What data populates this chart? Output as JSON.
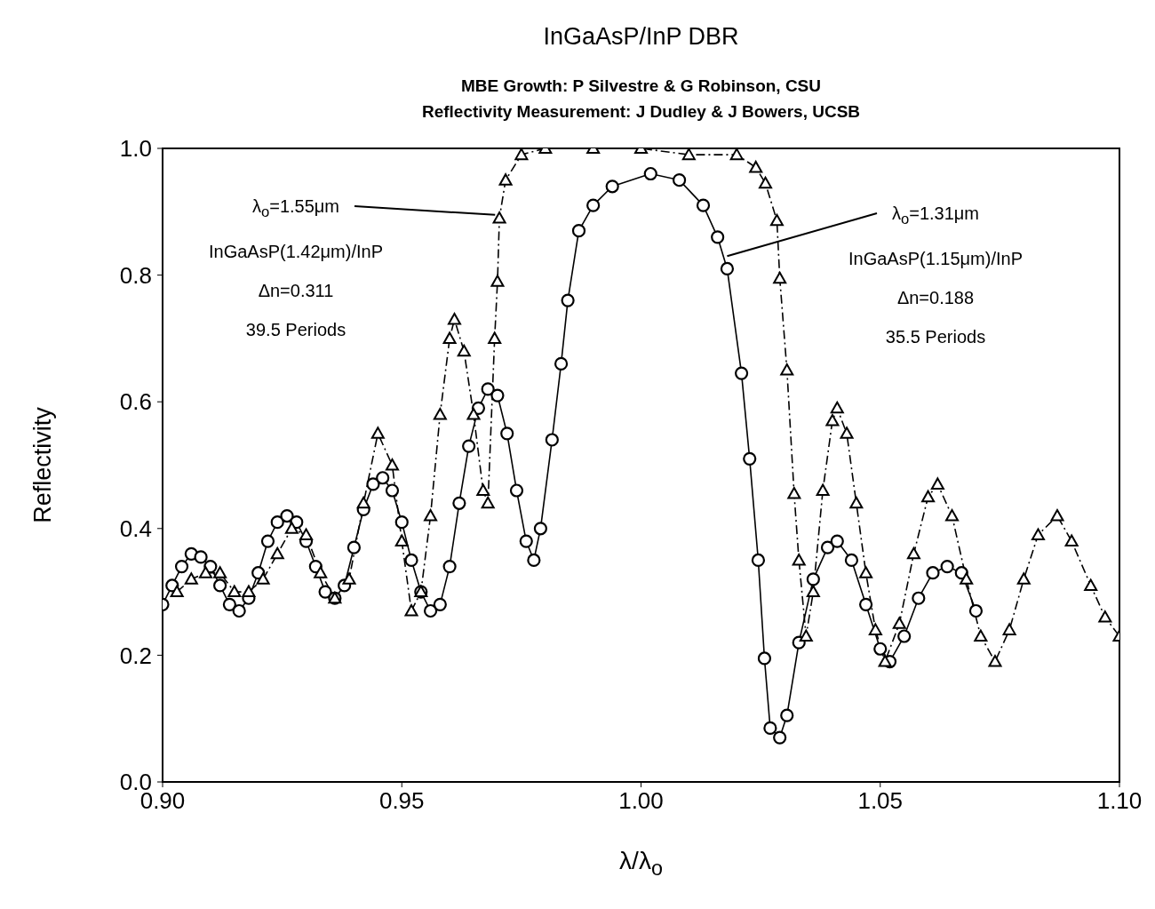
{
  "chart_data": {
    "type": "line",
    "title": "InGaAsP/InP  DBR",
    "subtitle": "MBE Growth: P Silvestre & G Robinson, CSU\nReflectivity Measurement: J Dudley & J Bowers, UCSB",
    "xlabel": "λ/λ$_{o}$",
    "ylabel": "Reflectivity",
    "xlim": [
      0.9,
      1.1
    ],
    "xticks": [
      {
        "value": 0.9,
        "label": "0.90"
      },
      {
        "value": 0.95,
        "label": "0.95"
      },
      {
        "value": 1.0,
        "label": "1.00"
      },
      {
        "value": 1.05,
        "label": "1.05"
      },
      {
        "value": 1.1,
        "label": "1.10"
      }
    ],
    "ylim": [
      0,
      1
    ],
    "yticks": [
      {
        "value": 0,
        "label": "0.0"
      },
      {
        "value": 0.2,
        "label": "0.2"
      },
      {
        "value": 0.4,
        "label": "0.4"
      },
      {
        "value": 0.6,
        "label": "0.6"
      },
      {
        "value": 0.8,
        "label": "0.8"
      },
      {
        "value": 1,
        "label": "1.0"
      }
    ],
    "grid": false,
    "legend": false,
    "series": [
      {
        "color": "#000000",
        "marker": "circle",
        "line_style": "solid",
        "x": [
          0.9,
          0.902,
          0.904,
          0.906,
          0.908,
          0.91,
          0.912,
          0.914,
          0.916,
          0.918,
          0.92,
          0.922,
          0.924,
          0.926,
          0.928,
          0.93,
          0.932,
          0.934,
          0.936,
          0.938,
          0.94,
          0.942,
          0.944,
          0.946,
          0.948,
          0.95,
          0.952,
          0.954,
          0.956,
          0.958,
          0.96,
          0.962,
          0.964,
          0.966,
          0.968,
          0.97,
          0.972,
          0.974,
          0.976,
          0.9776,
          0.979,
          0.9814,
          0.9833,
          0.9847,
          0.987,
          0.99,
          0.994,
          1.002,
          1.008,
          1.013,
          1.016,
          1.018,
          1.021,
          1.0227,
          1.0245,
          1.0258,
          1.027,
          1.029,
          1.0305,
          1.033,
          1.036,
          1.039,
          1.041,
          1.044,
          1.047,
          1.05,
          1.052,
          1.055,
          1.058,
          1.061,
          1.064,
          1.067,
          1.07
        ],
        "values": [
          0.28,
          0.31,
          0.34,
          0.36,
          0.355,
          0.34,
          0.31,
          0.28,
          0.27,
          0.29,
          0.33,
          0.38,
          0.41,
          0.42,
          0.41,
          0.38,
          0.34,
          0.3,
          0.29,
          0.31,
          0.37,
          0.43,
          0.47,
          0.48,
          0.46,
          0.41,
          0.35,
          0.3,
          0.27,
          0.28,
          0.34,
          0.44,
          0.53,
          0.59,
          0.62,
          0.61,
          0.55,
          0.46,
          0.38,
          0.35,
          0.4,
          0.54,
          0.66,
          0.76,
          0.87,
          0.91,
          0.94,
          0.96,
          0.95,
          0.91,
          0.86,
          0.81,
          0.645,
          0.51,
          0.35,
          0.195,
          0.085,
          0.07,
          0.105,
          0.22,
          0.32,
          0.37,
          0.38,
          0.35,
          0.28,
          0.21,
          0.19,
          0.23,
          0.29,
          0.33,
          0.34,
          0.33,
          0.27
        ]
      },
      {
        "color": "#000000",
        "marker": "triangle",
        "line_style": "dashed",
        "x": [
          0.903,
          0.906,
          0.909,
          0.912,
          0.915,
          0.918,
          0.921,
          0.924,
          0.927,
          0.93,
          0.933,
          0.936,
          0.939,
          0.942,
          0.945,
          0.948,
          0.95,
          0.952,
          0.954,
          0.956,
          0.958,
          0.96,
          0.961,
          0.963,
          0.965,
          0.967,
          0.968,
          0.9694,
          0.97,
          0.9704,
          0.9717,
          0.975,
          0.98,
          0.99,
          1.0,
          1.01,
          1.02,
          1.024,
          1.026,
          1.0284,
          1.029,
          1.0305,
          1.032,
          1.033,
          1.0345,
          1.036,
          1.038,
          1.04,
          1.041,
          1.043,
          1.045,
          1.047,
          1.049,
          1.051,
          1.054,
          1.057,
          1.06,
          1.062,
          1.065,
          1.068,
          1.071,
          1.074,
          1.077,
          1.08,
          1.083,
          1.087,
          1.09,
          1.094,
          1.097,
          1.1
        ],
        "values": [
          0.3,
          0.32,
          0.33,
          0.33,
          0.3,
          0.3,
          0.32,
          0.36,
          0.4,
          0.39,
          0.33,
          0.29,
          0.32,
          0.44,
          0.55,
          0.5,
          0.38,
          0.27,
          0.3,
          0.42,
          0.58,
          0.7,
          0.73,
          0.68,
          0.58,
          0.46,
          0.44,
          0.7,
          0.79,
          0.89,
          0.95,
          0.99,
          1.0,
          1.0,
          1.0,
          0.99,
          0.99,
          0.97,
          0.945,
          0.886,
          0.795,
          0.65,
          0.455,
          0.35,
          0.23,
          0.3,
          0.46,
          0.57,
          0.59,
          0.55,
          0.44,
          0.33,
          0.24,
          0.19,
          0.25,
          0.36,
          0.45,
          0.47,
          0.42,
          0.32,
          0.23,
          0.19,
          0.24,
          0.32,
          0.39,
          0.42,
          0.38,
          0.31,
          0.26,
          0.23
        ]
      }
    ],
    "annotations": [
      {
        "text": "λ$_{o}$=1.55μm",
        "x": 0.9695,
        "y": 0.895
      },
      "InGaAsP(1.42μm)/InP",
      "Δn=0.311",
      "39.5 Periods",
      {
        "text": "λ$_{o}$=1.31μm",
        "x": 1.018,
        "y": 0.83
      },
      "InGaAsP(1.15μm)/InP",
      "Δn=0.188",
      "35.5 Periods"
    ]
  }
}
